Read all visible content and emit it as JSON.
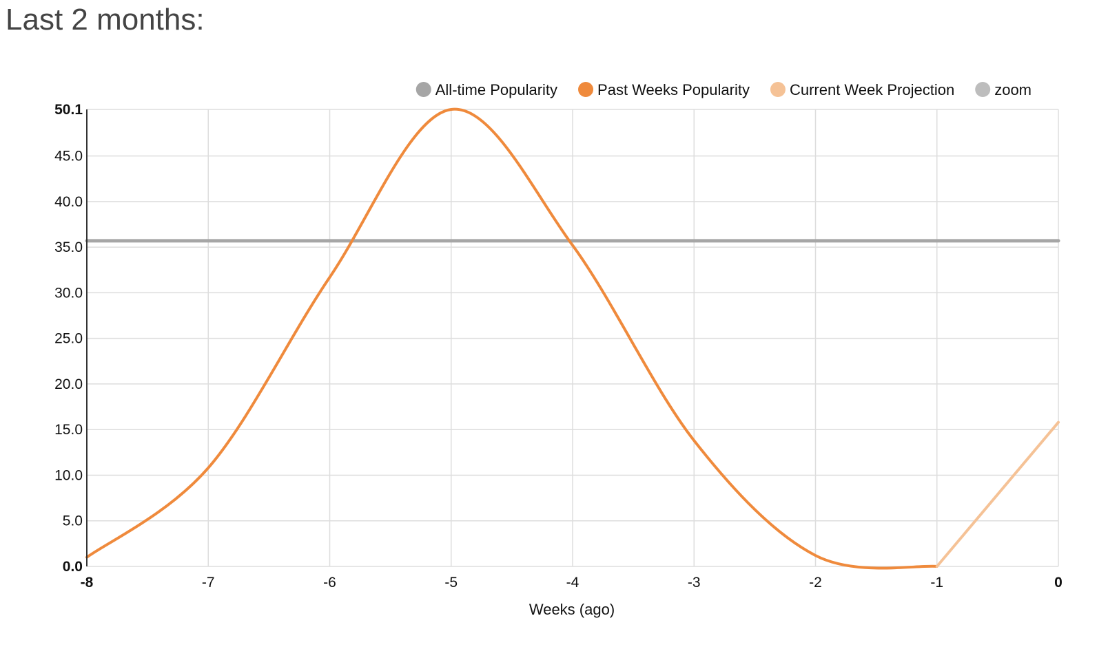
{
  "page": {
    "title": "Last 2 months:"
  },
  "colors": {
    "all_time": "#a6a6a6",
    "past_weeks": "#ef8a3c",
    "projection": "#f5c296",
    "zoom": "#bdbdbd",
    "grid": "#dddddd",
    "axis": "#333333"
  },
  "chart_data": {
    "type": "line",
    "xlabel": "Weeks (ago)",
    "ylabel": "",
    "xlim": [
      -8,
      0
    ],
    "ylim": [
      0,
      50.1
    ],
    "x_ticks": [
      "-8",
      "-7",
      "-6",
      "-5",
      "-4",
      "-3",
      "-2",
      "-1",
      "0"
    ],
    "y_ticks": [
      "0.0",
      "5.0",
      "10.0",
      "15.0",
      "20.0",
      "25.0",
      "30.0",
      "35.0",
      "40.0",
      "45.0",
      "50.1"
    ],
    "legend": {
      "position": "top-right",
      "items": [
        {
          "label": "All-time Popularity",
          "color": "#a6a6a6"
        },
        {
          "label": "Past Weeks Popularity",
          "color": "#ef8a3c"
        },
        {
          "label": "Current Week Projection",
          "color": "#f5c296"
        },
        {
          "label": "zoom",
          "color": "#bdbdbd"
        }
      ]
    },
    "series": [
      {
        "name": "All-time Popularity",
        "color": "#a6a6a6",
        "x": [
          -8,
          0
        ],
        "y": [
          35.7,
          35.7
        ]
      },
      {
        "name": "Past Weeks Popularity",
        "color": "#ef8a3c",
        "smooth": true,
        "x": [
          -8,
          -7,
          -6,
          -5,
          -4,
          -3,
          -2,
          -1
        ],
        "y": [
          1.0,
          10.8,
          31.7,
          50.1,
          35.2,
          13.8,
          1.2,
          0.0
        ]
      },
      {
        "name": "Current Week Projection",
        "color": "#f5c296",
        "x": [
          -1,
          0
        ],
        "y": [
          0.0,
          15.8
        ]
      }
    ]
  }
}
